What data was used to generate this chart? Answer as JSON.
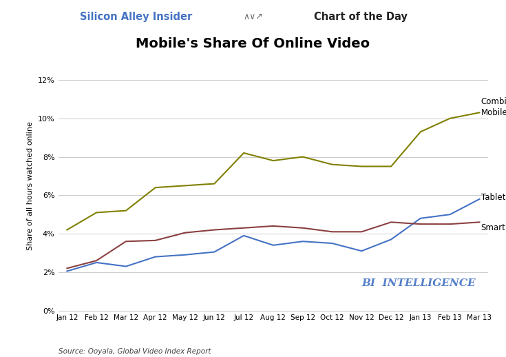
{
  "title": "Mobile's Share Of Online Video",
  "source": "Source: Ooyala, Global Video Index Report",
  "ylabel": "Share of all hours watched online",
  "x_labels": [
    "Jan 12",
    "Feb 12",
    "Mar 12",
    "Apr 12",
    "May 12",
    "Jun 12",
    "Jul 12",
    "Aug 12",
    "Sep 12",
    "Oct 12",
    "Nov 12",
    "Dec 12",
    "Jan 13",
    "Feb 13",
    "Mar 13"
  ],
  "combined_mobile": [
    4.2,
    5.1,
    5.2,
    6.4,
    6.5,
    6.6,
    8.2,
    7.8,
    8.0,
    7.6,
    7.5,
    7.5,
    9.3,
    10.0,
    10.3
  ],
  "tablets": [
    2.05,
    2.5,
    2.3,
    2.8,
    2.9,
    3.05,
    3.9,
    3.4,
    3.6,
    3.5,
    3.1,
    3.7,
    4.8,
    5.0,
    5.8
  ],
  "smartphones": [
    2.2,
    2.6,
    3.6,
    3.65,
    4.05,
    4.2,
    4.3,
    4.4,
    4.3,
    4.1,
    4.1,
    4.6,
    4.5,
    4.5,
    4.6
  ],
  "combined_color": "#808000",
  "tablets_color": "#4472c4",
  "smartphones_color": "#8B4040",
  "bg_color": "#ffffff",
  "plot_bg_color": "#ffffff",
  "header_bg_color": "#dde3ea",
  "bi_text": "BI  INTELLIGENCE",
  "bi_color": "#4472c4",
  "grid_color": "#cccccc",
  "annotation_fontsize": 8.5,
  "title_fontsize": 14,
  "tick_fontsize": 8,
  "ylabel_fontsize": 8
}
